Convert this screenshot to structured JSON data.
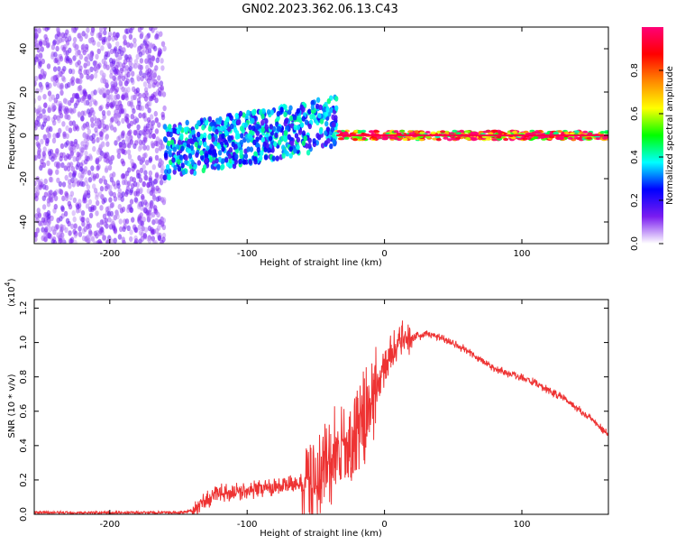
{
  "figure_title": "GN02.2023.362.06.13.C43",
  "chart_data": [
    {
      "type": "heatmap",
      "title": "",
      "xlabel": "Height of straight line (km)",
      "ylabel": "Frequency (Hz)",
      "xlim": [
        -255,
        163
      ],
      "ylim": [
        -50,
        50
      ],
      "x_ticks": [
        -200,
        -100,
        0,
        100
      ],
      "y_ticks": [
        -40,
        -20,
        0,
        20,
        40
      ],
      "colorbar": {
        "label": "Normalized spectral amplitude",
        "range": [
          0,
          1
        ],
        "ticks": [
          "0.0",
          "0.2",
          "0.4",
          "0.6",
          "0.8"
        ],
        "colors": [
          "#ffffff",
          "#7a1cf0",
          "#0000ff",
          "#00ffff",
          "#00ff00",
          "#ffff00",
          "#ff8800",
          "#ff0000",
          "#ff0077"
        ]
      },
      "regions": [
        {
          "x_from": -255,
          "x_to": -160,
          "freq_from": -50,
          "freq_to": 50,
          "amplitude": 0.1
        },
        {
          "x_from": -160,
          "x_to": -35,
          "freq_from": -12,
          "freq_to": 12,
          "amplitude": 0.3
        },
        {
          "x_from": -35,
          "x_to": 163,
          "freq_from": -2,
          "freq_to": 2,
          "amplitude": 0.8
        }
      ]
    },
    {
      "type": "line",
      "title": "",
      "xlabel": "Height of straight line (km)",
      "ylabel": "SNR (10 * v/v)",
      "y_scale_label": "(x10",
      "y_scale_exp": "4",
      "y_scale_close": ")",
      "xlim": [
        -255,
        163
      ],
      "ylim": [
        0,
        1.25
      ],
      "x_ticks": [
        -200,
        -100,
        0,
        100
      ],
      "y_tick_labels": [
        "0.0",
        "0.2",
        "0.4",
        "0.6",
        "0.8",
        "1.0",
        "1.2"
      ],
      "line_color": "#ee3333",
      "series": [
        {
          "x": [
            -255,
            -200,
            -150,
            -140,
            -130,
            -120,
            -100,
            -80,
            -60,
            -50,
            -40,
            -30,
            -20,
            -15,
            -10,
            -5,
            0,
            5,
            10,
            15,
            20,
            30,
            40,
            50,
            60,
            70,
            80,
            90,
            100,
            110,
            120,
            130,
            140,
            150,
            163
          ],
          "y": [
            0.01,
            0.01,
            0.01,
            0.02,
            0.08,
            0.12,
            0.14,
            0.16,
            0.18,
            0.22,
            0.3,
            0.35,
            0.45,
            0.55,
            0.65,
            0.75,
            0.85,
            0.95,
            1.0,
            1.02,
            1.03,
            1.05,
            1.03,
            1.0,
            0.95,
            0.9,
            0.85,
            0.82,
            0.8,
            0.76,
            0.72,
            0.68,
            0.62,
            0.56,
            0.46
          ]
        }
      ]
    }
  ]
}
